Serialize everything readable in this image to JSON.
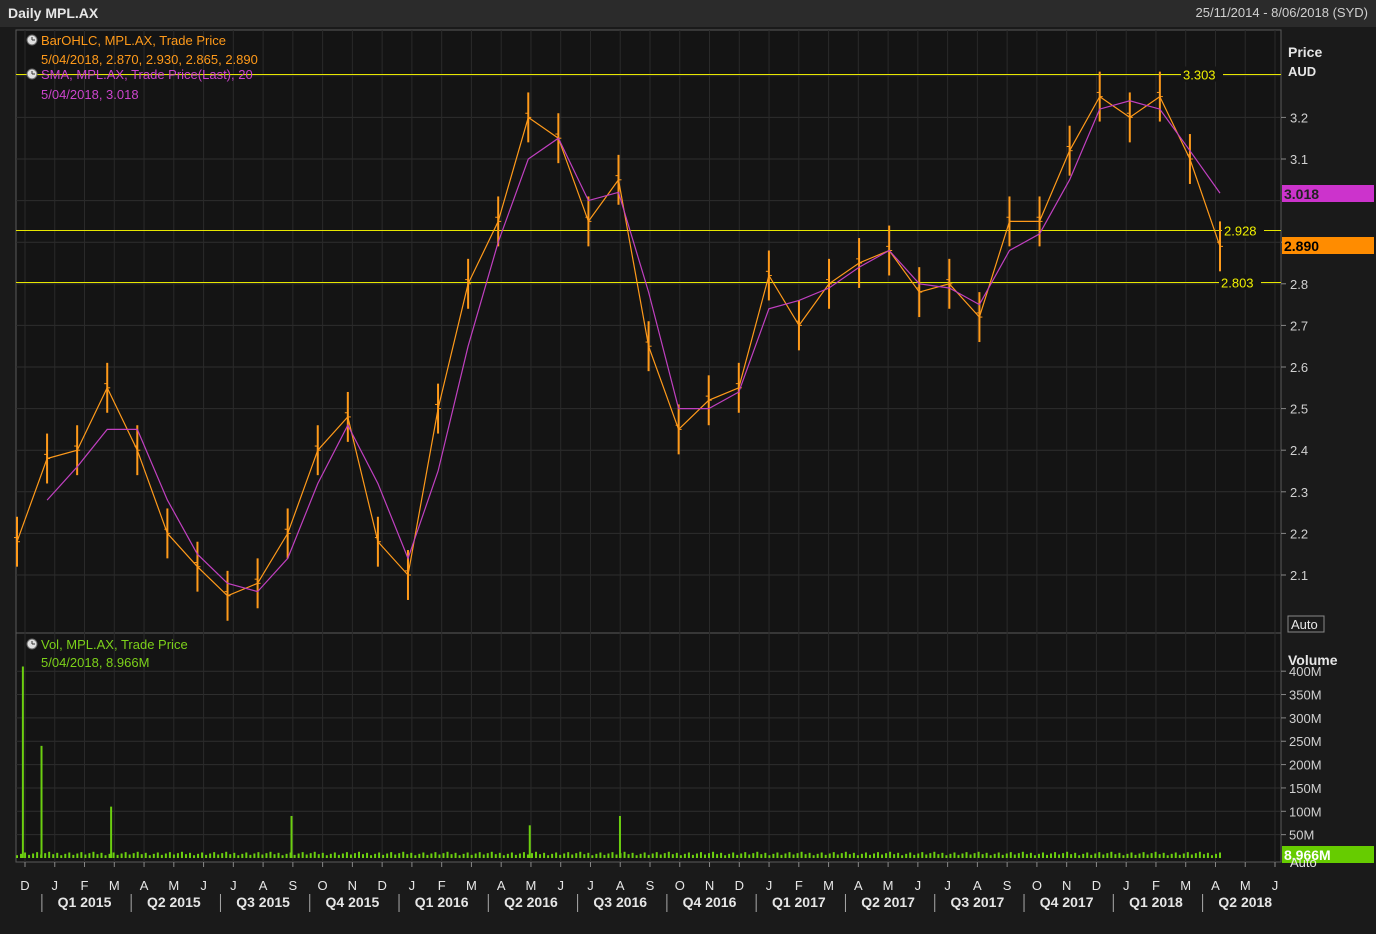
{
  "window": {
    "title": "Daily MPL.AX",
    "date_range": "25/11/2014 - 8/06/2018 (SYD)"
  },
  "price_panel": {
    "axis_title": "Price",
    "axis_unit": "AUD",
    "auto_label": "Auto",
    "legend": [
      {
        "icon": "clock-icon",
        "line1": "BarOHLC, MPL.AX, Trade Price",
        "line2": "5/04/2018, 2.870, 2.930, 2.865, 2.890",
        "color": "#ff9a1a"
      },
      {
        "icon": "clock-icon",
        "line1": "SMA, MPL.AX, Trade Price(Last),  20",
        "line2": "5/04/2018, 3.018",
        "color": "#cc44cc"
      }
    ],
    "tick_labels": [
      "2.1",
      "2.2",
      "2.3",
      "2.4",
      "2.5",
      "2.6",
      "2.7",
      "2.8",
      "2.9",
      "3.1",
      "3.2"
    ],
    "hlines": [
      {
        "label": "3.303"
      },
      {
        "label": "2.928"
      },
      {
        "label": "2.803"
      }
    ],
    "badges": [
      {
        "label": "3.018",
        "color": "#cc33cc",
        "text_color": "#222222"
      },
      {
        "label": "2.890",
        "color": "#ff8c00",
        "text_color": "#000000"
      }
    ]
  },
  "volume_panel": {
    "axis_title": "Volume",
    "auto_label": "Auto",
    "legend": {
      "icon": "clock-icon",
      "line1": "Vol, MPL.AX, Trade Price",
      "line2": "5/04/2018, 8.966M",
      "color": "#7cd11a"
    },
    "tick_labels": [
      "50M",
      "100M",
      "150M",
      "200M",
      "250M",
      "300M",
      "350M",
      "400M"
    ],
    "badge": {
      "label": "8.966M",
      "color": "#66cc00"
    }
  },
  "x_axis": {
    "months": [
      "D",
      "J",
      "F",
      "M",
      "A",
      "M",
      "J",
      "J",
      "A",
      "S",
      "O",
      "N",
      "D",
      "J",
      "F",
      "M",
      "A",
      "M",
      "J",
      "J",
      "A",
      "S",
      "O",
      "N",
      "D",
      "J",
      "F",
      "M",
      "A",
      "M",
      "J",
      "J",
      "A",
      "S",
      "O",
      "N",
      "D",
      "J",
      "F",
      "M",
      "A",
      "M",
      "J"
    ],
    "quarters": [
      "Q1 2015",
      "Q2 2015",
      "Q3 2015",
      "Q4 2015",
      "Q1 2016",
      "Q2 2016",
      "Q3 2016",
      "Q4 2016",
      "Q1 2017",
      "Q2 2017",
      "Q3 2017",
      "Q4 2017",
      "Q1 2018",
      "Q2 2018"
    ]
  },
  "chart_data": [
    {
      "type": "line",
      "name": "BarOHLC, MPL.AX, Trade Price",
      "x_unit": "month",
      "x": [
        "2014-12",
        "2015-01",
        "2015-02",
        "2015-03",
        "2015-04",
        "2015-05",
        "2015-06",
        "2015-07",
        "2015-08",
        "2015-09",
        "2015-10",
        "2015-11",
        "2015-12",
        "2016-01",
        "2016-02",
        "2016-03",
        "2016-04",
        "2016-05",
        "2016-06",
        "2016-07",
        "2016-08",
        "2016-09",
        "2016-10",
        "2016-11",
        "2016-12",
        "2017-01",
        "2017-02",
        "2017-03",
        "2017-04",
        "2017-05",
        "2017-06",
        "2017-07",
        "2017-08",
        "2017-09",
        "2017-10",
        "2017-11",
        "2017-12",
        "2018-01",
        "2018-02",
        "2018-03",
        "2018-04"
      ],
      "series": [
        {
          "name": "BarOHLC, MPL.AX, Trade Price",
          "values": [
            2.18,
            2.38,
            2.4,
            2.55,
            2.4,
            2.2,
            2.12,
            2.05,
            2.08,
            2.2,
            2.4,
            2.48,
            2.18,
            2.1,
            2.5,
            2.8,
            2.95,
            3.2,
            3.15,
            2.95,
            3.05,
            2.65,
            2.45,
            2.52,
            2.55,
            2.82,
            2.7,
            2.8,
            2.85,
            2.88,
            2.78,
            2.8,
            2.72,
            2.95,
            2.95,
            3.12,
            3.25,
            3.2,
            3.25,
            3.1,
            2.89
          ]
        },
        {
          "name": "SMA, MPL.AX, Trade Price(Last),  20",
          "values": [
            null,
            2.28,
            2.36,
            2.45,
            2.45,
            2.28,
            2.15,
            2.08,
            2.06,
            2.14,
            2.32,
            2.46,
            2.32,
            2.14,
            2.35,
            2.65,
            2.9,
            3.1,
            3.15,
            3.0,
            3.02,
            2.78,
            2.5,
            2.5,
            2.54,
            2.74,
            2.76,
            2.79,
            2.84,
            2.88,
            2.8,
            2.79,
            2.75,
            2.88,
            2.92,
            3.05,
            3.22,
            3.24,
            3.22,
            3.12,
            3.018
          ]
        }
      ],
      "reference_lines": [
        3.303,
        2.928,
        2.803
      ],
      "ylabel": "Price AUD",
      "ylim": [
        2.0,
        3.36
      ],
      "grid": true
    },
    {
      "type": "bar",
      "name": "Vol, MPL.AX, Trade Price",
      "spikes": [
        {
          "date": "2014-12-01",
          "value": 410
        },
        {
          "date": "2014-12-20",
          "value": 240
        },
        {
          "date": "2015-03-01",
          "value": 110
        },
        {
          "date": "2015-09-01",
          "value": 90
        },
        {
          "date": "2016-05-01",
          "value": 70
        },
        {
          "date": "2016-08-01",
          "value": 90
        },
        {
          "date": "2018-04-05",
          "value": 8.966
        }
      ],
      "typical_value": 10,
      "ylabel": "Volume",
      "ylim": [
        0,
        430
      ],
      "grid": true
    }
  ]
}
